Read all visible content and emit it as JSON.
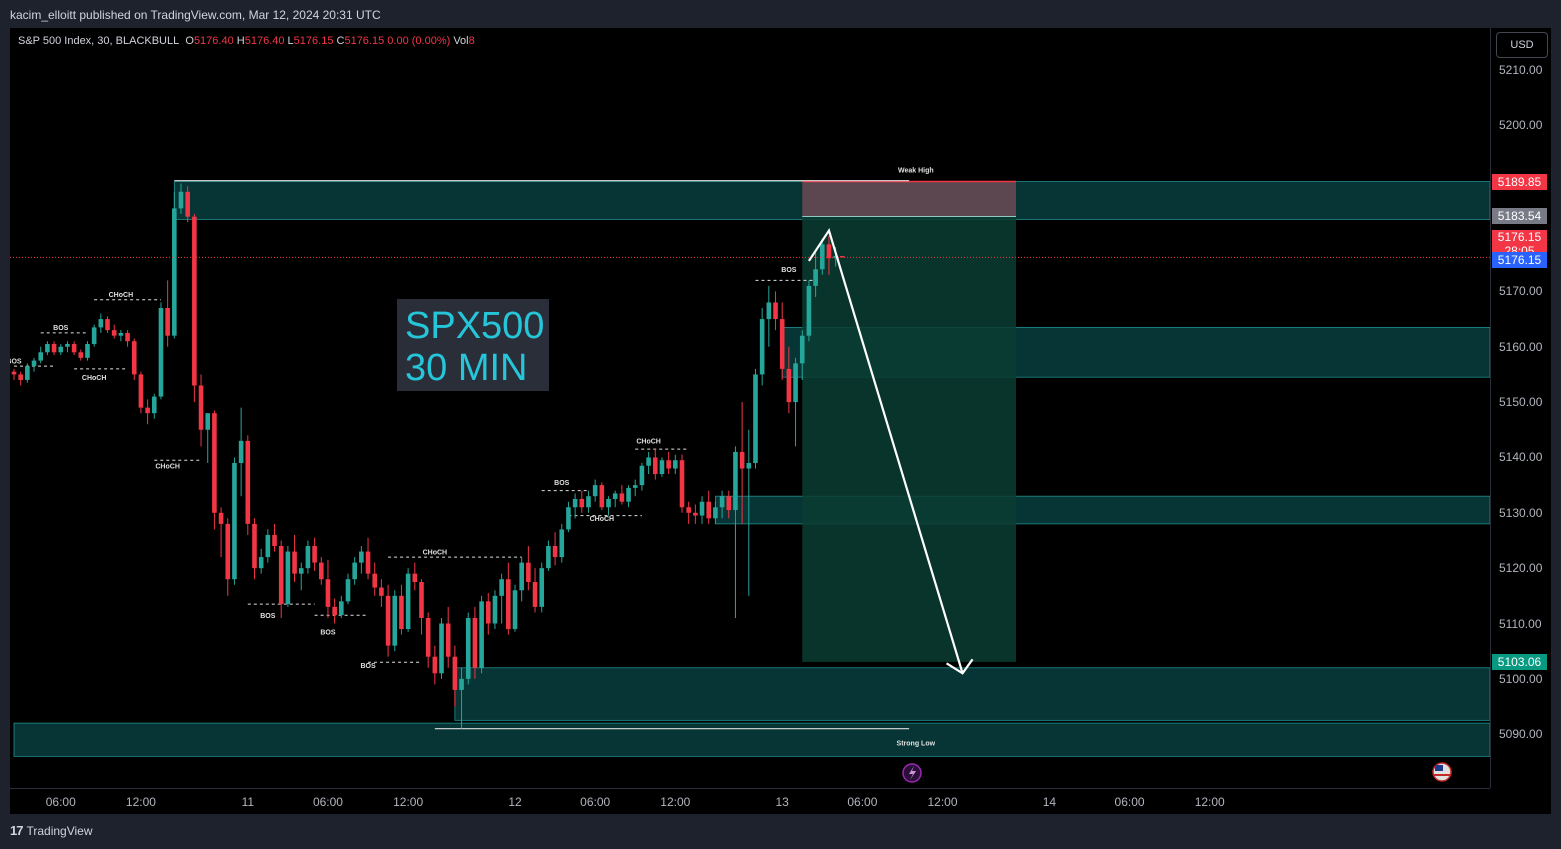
{
  "header": {
    "published": "kacim_elloitt published on TradingView.com, Mar 12, 2024 20:31 UTC"
  },
  "legend": {
    "symbol": "S&P 500 Index, 30, BLACKBULL",
    "o_label": "O",
    "o": "5176.40",
    "h_label": "H",
    "h": "5176.40",
    "l_label": "L",
    "l": "5176.15",
    "c_label": "C",
    "c": "5176.15",
    "change": "0.00 (0.00%)",
    "vol_label": "Vol",
    "vol": "8"
  },
  "currency_button": "USD",
  "title_overlay": {
    "line1": "SPX500",
    "line2": "30 MIN"
  },
  "footer": {
    "brand": "TradingView"
  },
  "price_badges": {
    "weak_high": "5189.85",
    "entry": "5183.54",
    "last": "5176.15",
    "countdown": "28:05",
    "bid": "5176.15",
    "target": "5103.06"
  },
  "colors": {
    "up": "#26a69a",
    "down": "#f23645",
    "zone": "#0a4a4a",
    "target_zone": "#0b3d33",
    "stop_zone": "#6b4a55"
  },
  "chart_data": {
    "type": "candlestick",
    "title": "",
    "xlabel": "",
    "ylabel": "",
    "ylim": [
      5085,
      5215
    ],
    "y_ticks": [
      5210,
      5200,
      5170,
      5160,
      5150,
      5140,
      5130,
      5120,
      5110,
      5100,
      5090
    ],
    "y_tick_labels": [
      "5210.00",
      "5200.00",
      "5170.00",
      "5160.00",
      "5150.00",
      "5140.00",
      "5130.00",
      "5120.00",
      "5110.00",
      "5100.00",
      "5090.00"
    ],
    "x_tick_labels": [
      "06:00",
      "12:00",
      "11",
      "06:00",
      "12:00",
      "12",
      "06:00",
      "12:00",
      "13",
      "06:00",
      "12:00",
      "14",
      "06:00",
      "12:00"
    ],
    "x_tick_index": [
      7,
      19,
      35,
      47,
      59,
      75,
      87,
      99,
      115,
      127,
      139,
      155,
      167,
      179
    ],
    "candles": [
      [
        0,
        5155.5,
        5156.0,
        5154.0,
        5155.0
      ],
      [
        1,
        5155.0,
        5155.5,
        5153.0,
        5154.0
      ],
      [
        2,
        5154.0,
        5157.0,
        5153.5,
        5156.5
      ],
      [
        3,
        5156.5,
        5158.0,
        5155.5,
        5157.5
      ],
      [
        4,
        5157.5,
        5160.0,
        5157.0,
        5159.0
      ],
      [
        5,
        5159.0,
        5161.0,
        5158.5,
        5160.5
      ],
      [
        6,
        5160.5,
        5161.0,
        5158.5,
        5159.0
      ],
      [
        7,
        5159.0,
        5160.5,
        5158.5,
        5160.0
      ],
      [
        8,
        5160.0,
        5161.0,
        5159.0,
        5160.5
      ],
      [
        9,
        5160.5,
        5161.0,
        5158.5,
        5159.0
      ],
      [
        10,
        5159.0,
        5159.5,
        5157.5,
        5158.0
      ],
      [
        11,
        5158.0,
        5161.0,
        5157.5,
        5160.5
      ],
      [
        12,
        5160.5,
        5164.0,
        5160.0,
        5163.5
      ],
      [
        13,
        5163.5,
        5166.0,
        5162.5,
        5165.0
      ],
      [
        14,
        5165.0,
        5165.5,
        5162.5,
        5163.0
      ],
      [
        15,
        5163.0,
        5164.0,
        5161.5,
        5162.0
      ],
      [
        16,
        5162.0,
        5163.0,
        5161.0,
        5162.5
      ],
      [
        17,
        5162.5,
        5163.0,
        5160.0,
        5161.0
      ],
      [
        18,
        5161.0,
        5161.5,
        5154.0,
        5155.0
      ],
      [
        19,
        5155.0,
        5155.5,
        5148.0,
        5149.0
      ],
      [
        20,
        5149.0,
        5150.5,
        5146.0,
        5148.0
      ],
      [
        21,
        5148.0,
        5151.5,
        5147.0,
        5151.0
      ],
      [
        22,
        5151.0,
        5168.0,
        5150.5,
        5167.0
      ],
      [
        23,
        5167.0,
        5172.0,
        5160.0,
        5162.0
      ],
      [
        24,
        5162.0,
        5188.0,
        5161.5,
        5185.0
      ],
      [
        25,
        5185.0,
        5189.5,
        5184.0,
        5188.0
      ],
      [
        26,
        5188.0,
        5189.0,
        5182.5,
        5183.5
      ],
      [
        27,
        5183.5,
        5184.0,
        5150.0,
        5153.0
      ],
      [
        28,
        5153.0,
        5155.0,
        5142.0,
        5145.0
      ],
      [
        29,
        5145.0,
        5148.0,
        5139.0,
        5148.0
      ],
      [
        30,
        5148.0,
        5148.5,
        5127.0,
        5130.0
      ],
      [
        31,
        5130.0,
        5131.0,
        5122.0,
        5128.0
      ],
      [
        32,
        5128.0,
        5129.0,
        5115.0,
        5118.0
      ],
      [
        33,
        5118.0,
        5140.0,
        5117.0,
        5139.0
      ],
      [
        34,
        5139.0,
        5149.0,
        5133.0,
        5143.0
      ],
      [
        35,
        5143.0,
        5144.0,
        5126.0,
        5128.0
      ],
      [
        36,
        5128.0,
        5129.0,
        5118.0,
        5120.0
      ],
      [
        37,
        5120.0,
        5123.5,
        5119.0,
        5122.0
      ],
      [
        38,
        5122.0,
        5127.0,
        5121.0,
        5126.0
      ],
      [
        39,
        5126.0,
        5128.0,
        5123.0,
        5124.0
      ],
      [
        40,
        5124.0,
        5125.0,
        5111.0,
        5113.5
      ],
      [
        41,
        5113.5,
        5124.0,
        5113.0,
        5123.0
      ],
      [
        42,
        5123.0,
        5126.0,
        5117.5,
        5119.0
      ],
      [
        43,
        5119.0,
        5121.0,
        5116.0,
        5120.0
      ],
      [
        44,
        5120.0,
        5125.0,
        5119.0,
        5124.0
      ],
      [
        45,
        5124.0,
        5125.5,
        5119.5,
        5121.0
      ],
      [
        46,
        5121.0,
        5122.0,
        5117.0,
        5118.0
      ],
      [
        47,
        5118.0,
        5121.5,
        5111.0,
        5113.0
      ],
      [
        48,
        5113.0,
        5114.5,
        5110.0,
        5111.5
      ],
      [
        49,
        5111.5,
        5115.0,
        5111.0,
        5114.0
      ],
      [
        50,
        5114.0,
        5119.0,
        5113.5,
        5118.0
      ],
      [
        51,
        5118.0,
        5122.0,
        5117.0,
        5121.0
      ],
      [
        52,
        5121.0,
        5124.0,
        5119.0,
        5123.0
      ],
      [
        53,
        5123.0,
        5125.5,
        5118.0,
        5119.0
      ],
      [
        54,
        5119.0,
        5121.0,
        5115.0,
        5116.5
      ],
      [
        55,
        5116.5,
        5118.0,
        5113.0,
        5115.0
      ],
      [
        56,
        5115.0,
        5117.0,
        5104.0,
        5106.0
      ],
      [
        57,
        5106.0,
        5116.0,
        5105.0,
        5115.0
      ],
      [
        58,
        5115.0,
        5117.0,
        5108.0,
        5109.0
      ],
      [
        59,
        5109.0,
        5120.0,
        5108.5,
        5119.0
      ],
      [
        60,
        5119.0,
        5121.0,
        5116.0,
        5117.5
      ],
      [
        61,
        5117.5,
        5118.0,
        5108.0,
        5111.0
      ],
      [
        62,
        5111.0,
        5112.0,
        5102.0,
        5104.0
      ],
      [
        63,
        5104.0,
        5106.0,
        5099.0,
        5101.0
      ],
      [
        64,
        5101.0,
        5111.0,
        5100.0,
        5110.0
      ],
      [
        65,
        5110.0,
        5113.0,
        5102.0,
        5104.0
      ],
      [
        66,
        5104.0,
        5106.0,
        5095.0,
        5098.0
      ],
      [
        67,
        5098.0,
        5102.0,
        5091.0,
        5100.0
      ],
      [
        68,
        5100.0,
        5112.0,
        5099.0,
        5111.0
      ],
      [
        69,
        5111.0,
        5113.0,
        5100.0,
        5102.0
      ],
      [
        70,
        5102.0,
        5115.0,
        5101.0,
        5114.0
      ],
      [
        71,
        5114.0,
        5115.5,
        5108.0,
        5110.0
      ],
      [
        72,
        5110.0,
        5116.0,
        5109.0,
        5115.0
      ],
      [
        73,
        5115.0,
        5119.0,
        5110.0,
        5118.0
      ],
      [
        74,
        5118.0,
        5121.0,
        5108.0,
        5109.0
      ],
      [
        75,
        5109.0,
        5117.0,
        5108.5,
        5116.0
      ],
      [
        76,
        5116.0,
        5122.0,
        5114.0,
        5121.0
      ],
      [
        77,
        5121.0,
        5124.0,
        5116.0,
        5117.5
      ],
      [
        78,
        5117.5,
        5120.0,
        5112.0,
        5113.0
      ],
      [
        79,
        5113.0,
        5121.0,
        5112.0,
        5120.0
      ],
      [
        80,
        5120.0,
        5125.0,
        5119.5,
        5124.0
      ],
      [
        81,
        5124.0,
        5126.5,
        5120.5,
        5122.0
      ],
      [
        82,
        5122.0,
        5128.0,
        5121.0,
        5127.0
      ],
      [
        83,
        5127.0,
        5132.0,
        5126.5,
        5131.0
      ],
      [
        84,
        5131.0,
        5133.5,
        5129.0,
        5132.5
      ],
      [
        85,
        5132.5,
        5134.0,
        5130.0,
        5131.0
      ],
      [
        86,
        5131.0,
        5134.0,
        5130.0,
        5133.0
      ],
      [
        87,
        5133.0,
        5136.0,
        5132.0,
        5135.0
      ],
      [
        88,
        5135.0,
        5135.5,
        5130.5,
        5131.0
      ],
      [
        89,
        5131.0,
        5133.0,
        5129.5,
        5132.5
      ],
      [
        90,
        5132.5,
        5134.0,
        5131.0,
        5133.5
      ],
      [
        91,
        5133.5,
        5135.0,
        5131.5,
        5132.0
      ],
      [
        92,
        5132.0,
        5135.0,
        5131.0,
        5134.5
      ],
      [
        93,
        5134.5,
        5136.0,
        5133.0,
        5135.0
      ],
      [
        94,
        5135.0,
        5139.0,
        5134.0,
        5138.5
      ],
      [
        95,
        5138.5,
        5141.0,
        5137.0,
        5140.0
      ],
      [
        96,
        5140.0,
        5141.5,
        5136.0,
        5137.0
      ],
      [
        97,
        5137.0,
        5140.0,
        5136.5,
        5139.5
      ],
      [
        98,
        5139.5,
        5141.0,
        5137.0,
        5138.0
      ],
      [
        99,
        5138.0,
        5140.5,
        5137.0,
        5139.5
      ],
      [
        100,
        5139.5,
        5140.5,
        5130.0,
        5131.0
      ],
      [
        101,
        5131.0,
        5132.0,
        5128.0,
        5130.0
      ],
      [
        102,
        5130.0,
        5131.5,
        5128.0,
        5129.5
      ],
      [
        103,
        5129.5,
        5133.0,
        5128.0,
        5132.0
      ],
      [
        104,
        5132.0,
        5134.0,
        5128.0,
        5129.0
      ],
      [
        105,
        5129.0,
        5132.0,
        5128.0,
        5131.0
      ],
      [
        106,
        5131.0,
        5134.0,
        5129.0,
        5133.0
      ],
      [
        107,
        5133.0,
        5134.0,
        5129.0,
        5130.5
      ],
      [
        108,
        5130.5,
        5142.0,
        5111.0,
        5141.0
      ],
      [
        109,
        5141.0,
        5150.0,
        5128.0,
        5138.0
      ],
      [
        110,
        5138.0,
        5145.0,
        5115.0,
        5139.0
      ],
      [
        111,
        5139.0,
        5156.0,
        5138.0,
        5155.0
      ],
      [
        112,
        5155.0,
        5167.0,
        5153.0,
        5165.0
      ],
      [
        113,
        5165.0,
        5171.0,
        5160.0,
        5168.0
      ],
      [
        114,
        5168.0,
        5170.0,
        5163.0,
        5165.0
      ],
      [
        115,
        5165.0,
        5168.0,
        5154.0,
        5156.0
      ],
      [
        116,
        5156.0,
        5160.0,
        5148.0,
        5150.0
      ],
      [
        117,
        5150.0,
        5158.0,
        5142.0,
        5157.0
      ],
      [
        118,
        5157.0,
        5163.0,
        5154.0,
        5162.0
      ],
      [
        119,
        5162.0,
        5172.0,
        5161.0,
        5171.0
      ],
      [
        120,
        5171.0,
        5177.0,
        5169.0,
        5174.0
      ],
      [
        121,
        5174.0,
        5179.5,
        5173.0,
        5178.5
      ],
      [
        122,
        5178.5,
        5180.0,
        5173.0,
        5176.0
      ],
      [
        123,
        5176.0,
        5178.0,
        5174.5,
        5176.4
      ],
      [
        124,
        5176.4,
        5176.4,
        5176.15,
        5176.15
      ]
    ],
    "zones": [
      {
        "from_index": 24,
        "price_high": 5189.85,
        "price_low": 5183.0,
        "kind": "supply"
      },
      {
        "from_index": 115,
        "price_high": 5163.5,
        "price_low": 5154.5,
        "kind": "demand"
      },
      {
        "from_index": 105,
        "price_high": 5133.0,
        "price_low": 5128.0,
        "kind": "demand"
      },
      {
        "from_index": 66,
        "price_high": 5102.0,
        "price_low": 5092.5,
        "kind": "demand"
      },
      {
        "from_index": 0,
        "price_high": 5092.0,
        "price_low": 5086.0,
        "kind": "demand"
      }
    ],
    "position": {
      "type": "short",
      "entry": 5183.54,
      "stop": 5189.85,
      "target": 5103.06,
      "from_index": 118,
      "to_index": 150
    },
    "projection_path": [
      [
        119,
        5175.5
      ],
      [
        122,
        5181.0
      ],
      [
        142,
        5101.0
      ]
    ],
    "structure_labels": [
      {
        "text": "BOS",
        "index": 0,
        "price": 5157.0
      },
      {
        "text": "BOS",
        "index": 7,
        "price": 5163.0
      },
      {
        "text": "CHoCH",
        "index": 16,
        "price": 5169.0
      },
      {
        "text": "CHoCH",
        "index": 12,
        "price": 5154.0
      },
      {
        "text": "CHoCH",
        "index": 23,
        "price": 5138.0
      },
      {
        "text": "BOS",
        "index": 38,
        "price": 5111.0
      },
      {
        "text": "BOS",
        "index": 47,
        "price": 5108.0
      },
      {
        "text": "BOS",
        "index": 53,
        "price": 5102.0
      },
      {
        "text": "CHoCH",
        "index": 63,
        "price": 5122.5
      },
      {
        "text": "BOS",
        "index": 82,
        "price": 5135.0
      },
      {
        "text": "CHoCH",
        "index": 88,
        "price": 5128.5
      },
      {
        "text": "CHoCH",
        "index": 95,
        "price": 5142.5
      },
      {
        "text": "BOS",
        "index": 116,
        "price": 5173.5
      },
      {
        "text": "Weak High",
        "index": 135,
        "price": 5191.5
      },
      {
        "text": "Strong Low",
        "index": 135,
        "price": 5088.0
      }
    ],
    "structure_lines": [
      [
        0,
        6,
        5156.5
      ],
      [
        4,
        11,
        5162.5
      ],
      [
        12,
        22,
        5168.5
      ],
      [
        9,
        17,
        5156.0
      ],
      [
        21,
        28,
        5139.5
      ],
      [
        35,
        45,
        5113.5
      ],
      [
        45,
        53,
        5111.5
      ],
      [
        53,
        61,
        5103.0
      ],
      [
        56,
        76,
        5122.0
      ],
      [
        79,
        86,
        5134.0
      ],
      [
        83,
        94,
        5129.5
      ],
      [
        93,
        101,
        5141.5
      ],
      [
        111,
        120,
        5172.0
      ],
      [
        24,
        134,
        5190.0
      ],
      [
        63,
        134,
        5091.0
      ]
    ]
  }
}
